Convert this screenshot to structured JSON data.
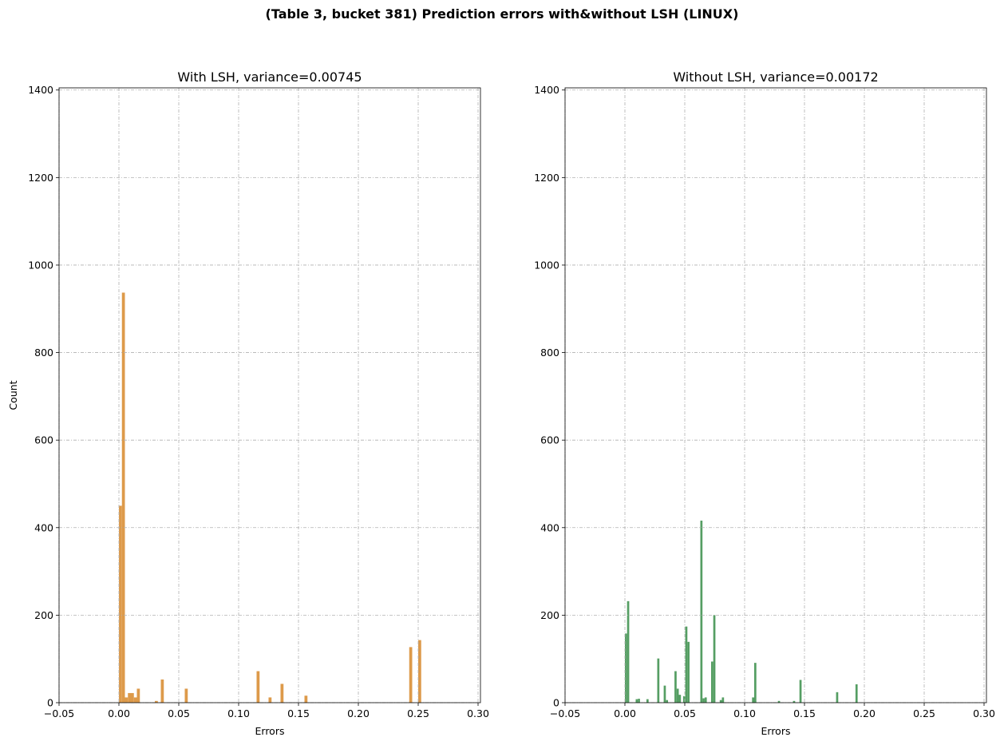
{
  "figure": {
    "suptitle": "(Table 3, bucket 381) Prediction errors with&without LSH (LINUX)",
    "colors": {
      "grid": "#b0b0b0",
      "axes": "#000000"
    }
  },
  "chart_data": [
    {
      "type": "bar",
      "title": "With LSH, variance=0.00745",
      "xlabel": "Errors",
      "ylabel": "Count",
      "xlim": [
        -0.05,
        0.302
      ],
      "ylim": [
        0,
        1405
      ],
      "xticks": [
        -0.05,
        0.0,
        0.05,
        0.1,
        0.15,
        0.2,
        0.25,
        0.3
      ],
      "xtick_labels": [
        "−0.05",
        "0.00",
        "0.05",
        "0.10",
        "0.15",
        "0.20",
        "0.25",
        "0.30"
      ],
      "yticks": [
        0,
        200,
        400,
        600,
        800,
        1000,
        1200,
        1400
      ],
      "ytick_labels": [
        "0",
        "200",
        "400",
        "600",
        "800",
        "1000",
        "1200",
        "1400"
      ],
      "grid": true,
      "color": "#dd9a4a",
      "bin_width": 0.0025,
      "bins": [
        {
          "x": 0.0,
          "count": 450
        },
        {
          "x": 0.0025,
          "count": 937
        },
        {
          "x": 0.005,
          "count": 12
        },
        {
          "x": 0.0075,
          "count": 22
        },
        {
          "x": 0.01,
          "count": 22
        },
        {
          "x": 0.0125,
          "count": 12
        },
        {
          "x": 0.015,
          "count": 32
        },
        {
          "x": 0.03,
          "count": 4
        },
        {
          "x": 0.035,
          "count": 53
        },
        {
          "x": 0.055,
          "count": 32
        },
        {
          "x": 0.115,
          "count": 72
        },
        {
          "x": 0.125,
          "count": 12
        },
        {
          "x": 0.135,
          "count": 43
        },
        {
          "x": 0.155,
          "count": 16
        },
        {
          "x": 0.2425,
          "count": 127
        },
        {
          "x": 0.25,
          "count": 143
        }
      ]
    },
    {
      "type": "bar",
      "title": "Without LSH, variance=0.00172",
      "xlabel": "Errors",
      "ylabel": "",
      "xlim": [
        -0.05,
        0.302
      ],
      "ylim": [
        0,
        1405
      ],
      "xticks": [
        -0.05,
        0.0,
        0.05,
        0.1,
        0.15,
        0.2,
        0.25,
        0.3
      ],
      "xtick_labels": [
        "−0.05",
        "0.00",
        "0.05",
        "0.10",
        "0.15",
        "0.20",
        "0.25",
        "0.30"
      ],
      "yticks": [
        0,
        200,
        400,
        600,
        800,
        1000,
        1200,
        1400
      ],
      "ytick_labels": [
        "0",
        "200",
        "400",
        "600",
        "800",
        "1000",
        "1200",
        "1400"
      ],
      "grid": true,
      "color": "#559e63",
      "bin_width": 0.0018,
      "bins": [
        {
          "x": 0.0,
          "count": 158
        },
        {
          "x": 0.0018,
          "count": 232
        },
        {
          "x": 0.009,
          "count": 8
        },
        {
          "x": 0.0108,
          "count": 9
        },
        {
          "x": 0.018,
          "count": 8
        },
        {
          "x": 0.027,
          "count": 101
        },
        {
          "x": 0.0324,
          "count": 39
        },
        {
          "x": 0.0342,
          "count": 6
        },
        {
          "x": 0.0414,
          "count": 72
        },
        {
          "x": 0.0432,
          "count": 32
        },
        {
          "x": 0.045,
          "count": 18
        },
        {
          "x": 0.0486,
          "count": 15
        },
        {
          "x": 0.0504,
          "count": 174
        },
        {
          "x": 0.0522,
          "count": 139
        },
        {
          "x": 0.063,
          "count": 416
        },
        {
          "x": 0.0648,
          "count": 10
        },
        {
          "x": 0.0666,
          "count": 12
        },
        {
          "x": 0.072,
          "count": 94
        },
        {
          "x": 0.0738,
          "count": 200
        },
        {
          "x": 0.0792,
          "count": 6
        },
        {
          "x": 0.081,
          "count": 12
        },
        {
          "x": 0.1062,
          "count": 12
        },
        {
          "x": 0.108,
          "count": 91
        },
        {
          "x": 0.1278,
          "count": 4
        },
        {
          "x": 0.1404,
          "count": 4
        },
        {
          "x": 0.1458,
          "count": 52
        },
        {
          "x": 0.1764,
          "count": 24
        },
        {
          "x": 0.1926,
          "count": 42
        }
      ]
    }
  ]
}
